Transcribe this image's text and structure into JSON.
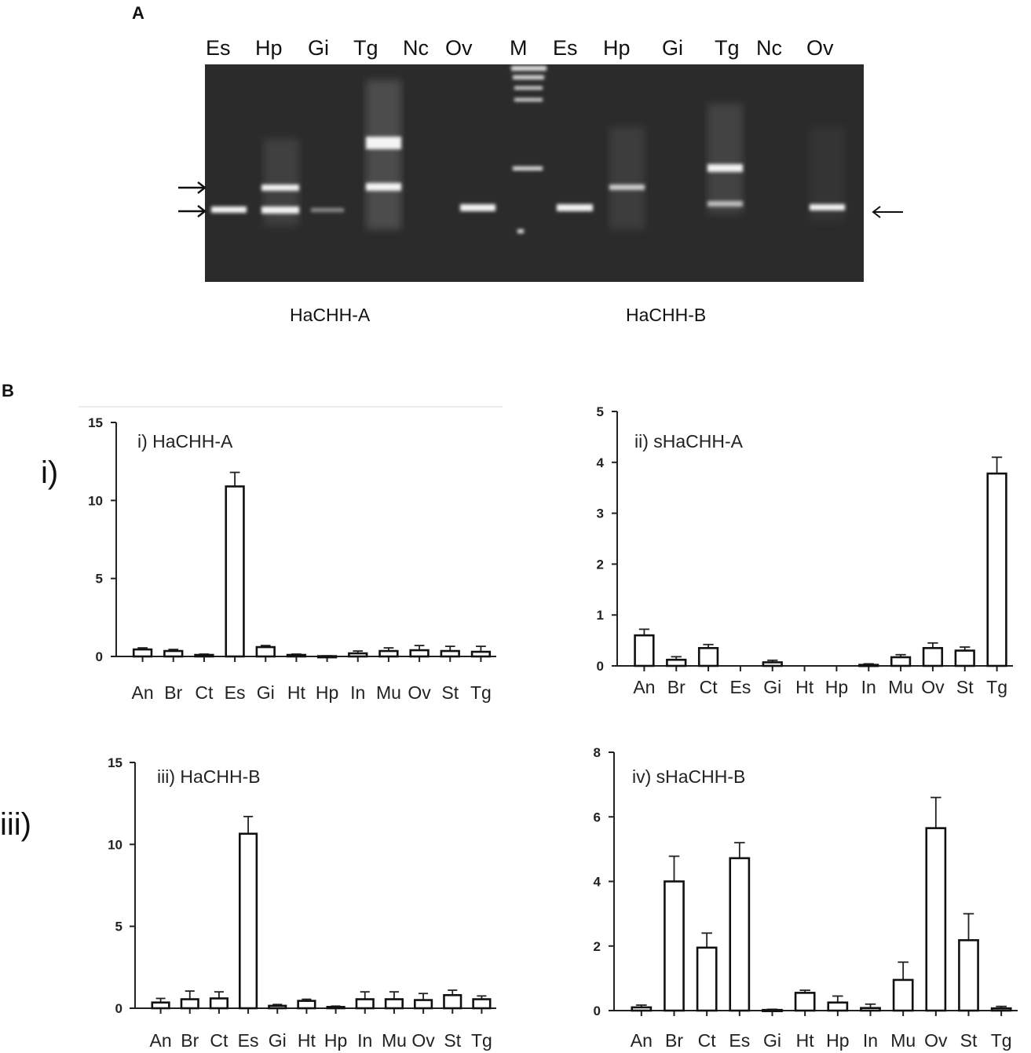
{
  "panel_a": {
    "letter": "A",
    "lanes": [
      "Es",
      "Hp",
      "Gi",
      "Tg",
      "Nc",
      "Ov",
      "M",
      "Es",
      "Hp",
      "Gi",
      "Tg",
      "Nc",
      "Ov"
    ],
    "gel_names": [
      "HaCHH-A",
      "HaCHH-B"
    ],
    "colors": {
      "gel_background": "#2a2a2a",
      "band": "#f2f2f2"
    }
  },
  "panel_b": {
    "letter": "B",
    "row_labels": [
      "i)",
      "iii)"
    ]
  },
  "chart_data": [
    {
      "type": "bar",
      "title": "i)  HaCHH-A",
      "categories": [
        "An",
        "Br",
        "Ct",
        "Es",
        "Gi",
        "Ht",
        "Hp",
        "In",
        "Mu",
        "Ov",
        "St",
        "Tg"
      ],
      "values": [
        0.45,
        0.35,
        0.1,
        10.9,
        0.6,
        0.1,
        0.02,
        0.2,
        0.35,
        0.4,
        0.35,
        0.3
      ],
      "errors": [
        0.1,
        0.1,
        0.05,
        0.9,
        0.1,
        0.05,
        0.02,
        0.15,
        0.2,
        0.3,
        0.3,
        0.35
      ],
      "yticks": [
        0,
        5,
        10,
        15
      ],
      "ylim": [
        0,
        15
      ]
    },
    {
      "type": "bar",
      "title": "ii)  sHaCHH-A",
      "categories": [
        "An",
        "Br",
        "Ct",
        "Es",
        "Gi",
        "Ht",
        "Hp",
        "In",
        "Mu",
        "Ov",
        "St",
        "Tg"
      ],
      "values": [
        0.6,
        0.12,
        0.35,
        0.0,
        0.07,
        0.0,
        0.0,
        0.02,
        0.17,
        0.35,
        0.3,
        3.78
      ],
      "errors": [
        0.12,
        0.06,
        0.07,
        0.0,
        0.04,
        0.0,
        0.0,
        0.02,
        0.05,
        0.1,
        0.07,
        0.32
      ],
      "yticks": [
        0,
        1,
        2,
        3,
        4,
        5
      ],
      "ylim": [
        0,
        5
      ]
    },
    {
      "type": "bar",
      "title": "iii)  HaCHH-B",
      "categories": [
        "An",
        "Br",
        "Ct",
        "Es",
        "Gi",
        "Ht",
        "Hp",
        "In",
        "Mu",
        "Ov",
        "St",
        "Tg"
      ],
      "values": [
        0.35,
        0.55,
        0.6,
        10.65,
        0.15,
        0.45,
        0.08,
        0.55,
        0.55,
        0.5,
        0.8,
        0.55
      ],
      "errors": [
        0.25,
        0.5,
        0.4,
        1.05,
        0.08,
        0.1,
        0.05,
        0.45,
        0.45,
        0.4,
        0.3,
        0.2
      ],
      "yticks": [
        0,
        5,
        10,
        15
      ],
      "ylim": [
        0,
        15
      ]
    },
    {
      "type": "bar",
      "title": "iv)  sHaCHH-B",
      "categories": [
        "An",
        "Br",
        "Ct",
        "Es",
        "Gi",
        "Ht",
        "Hp",
        "In",
        "Mu",
        "Ov",
        "St",
        "Tg"
      ],
      "values": [
        0.1,
        4.0,
        1.95,
        4.72,
        0.02,
        0.55,
        0.25,
        0.08,
        0.95,
        5.65,
        2.18,
        0.07
      ],
      "errors": [
        0.07,
        0.78,
        0.45,
        0.48,
        0.02,
        0.08,
        0.2,
        0.12,
        0.55,
        0.95,
        0.82,
        0.06
      ],
      "yticks": [
        0,
        2,
        4,
        6,
        8
      ],
      "ylim": [
        0,
        8
      ]
    }
  ]
}
